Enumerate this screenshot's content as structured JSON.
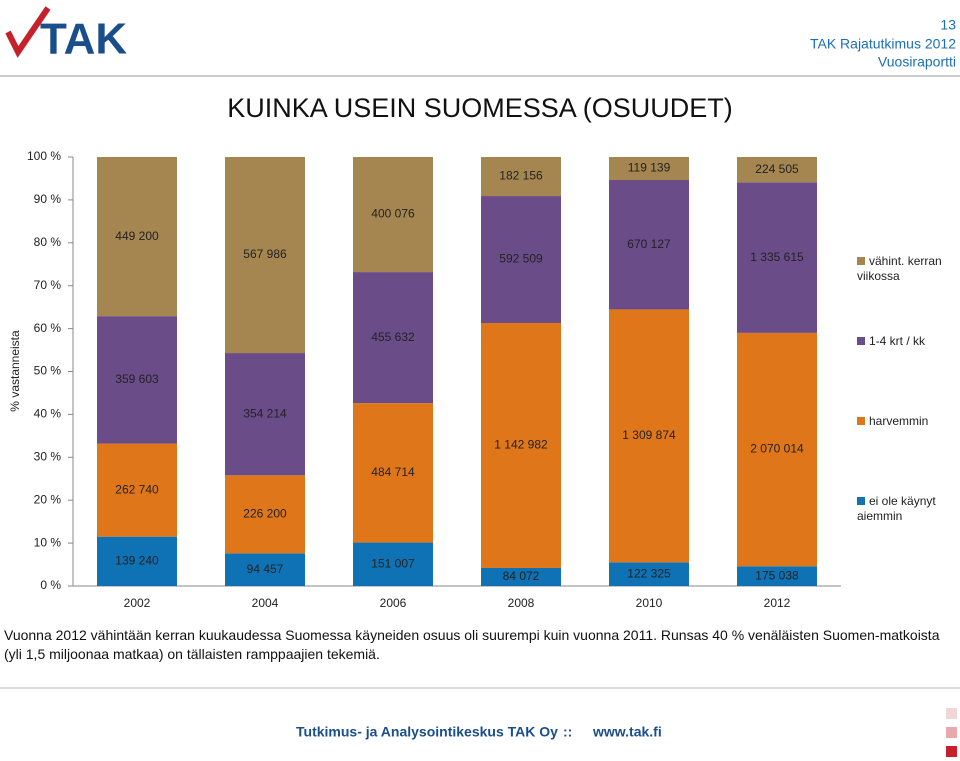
{
  "header": {
    "logo": "TAK",
    "page": "13",
    "line1": "TAK Rajatutkimus 2012",
    "line2": "Vuosiraportti"
  },
  "chart_data": {
    "type": "bar",
    "stack": "percent",
    "title": "KUINKA USEIN SUOMESSA (OSUUDET)",
    "ylabel": "% vastanneista",
    "categories": [
      "2002",
      "2004",
      "2006",
      "2008",
      "2010",
      "2012"
    ],
    "ylim": [
      0,
      100
    ],
    "yticks": [
      {
        "value": 0,
        "label": "0 %"
      },
      {
        "value": 10,
        "label": "10 %"
      },
      {
        "value": 20,
        "label": "20 %"
      },
      {
        "value": 30,
        "label": "30 %"
      },
      {
        "value": 40,
        "label": "40 %"
      },
      {
        "value": 50,
        "label": "50 %"
      },
      {
        "value": 60,
        "label": "60 %"
      },
      {
        "value": 70,
        "label": "70 %"
      },
      {
        "value": 80,
        "label": "80 %"
      },
      {
        "value": 90,
        "label": "90 %"
      },
      {
        "value": 100,
        "label": "100 %"
      }
    ],
    "legend": "right",
    "series": [
      {
        "name": "ei ole käynyt aiemmin",
        "color": "#0e72b5",
        "values": [
          139240,
          94457,
          151007,
          84072,
          122325,
          175038
        ],
        "value_labels": [
          "139 240",
          "94 457",
          "151 007",
          "84 072",
          "122 325",
          "175 038"
        ]
      },
      {
        "name": "harvemmin",
        "color": "#e0761a",
        "values": [
          262740,
          226200,
          484714,
          1142982,
          1309874,
          2070014
        ],
        "value_labels": [
          "262 740",
          "226 200",
          "484 714",
          "1 142 982",
          "1 309 874",
          "2 070 014"
        ]
      },
      {
        "name": "1-4 krt / kk",
        "color": "#6a4c89",
        "values": [
          359603,
          354214,
          455632,
          592509,
          670127,
          1335615
        ],
        "value_labels": [
          "359 603",
          "354 214",
          "455 632",
          "592 509",
          "670 127",
          "1 335 615"
        ]
      },
      {
        "name": "vähint. kerran viikossa",
        "color": "#a68650",
        "values": [
          449200,
          567986,
          400076,
          182156,
          119139,
          224505
        ],
        "value_labels": [
          "449 200",
          "567 986",
          "400 076",
          "182 156",
          "119 139",
          "224 505"
        ]
      }
    ]
  },
  "caption": "Vuonna 2012 vähintään kerran kuukaudessa Suomessa käyneiden osuus oli suurempi kuin vuonna 2011. Runsas 40 % venäläisten Suomen-matkoista (yli 1,5 miljoonaa matkaa) on tällaisten ramppaajien tekemiä.",
  "footer": {
    "org": "Tutkimus- ja Analysointikeskus TAK Oy",
    "sep": "::",
    "url": "www.tak.fi"
  }
}
